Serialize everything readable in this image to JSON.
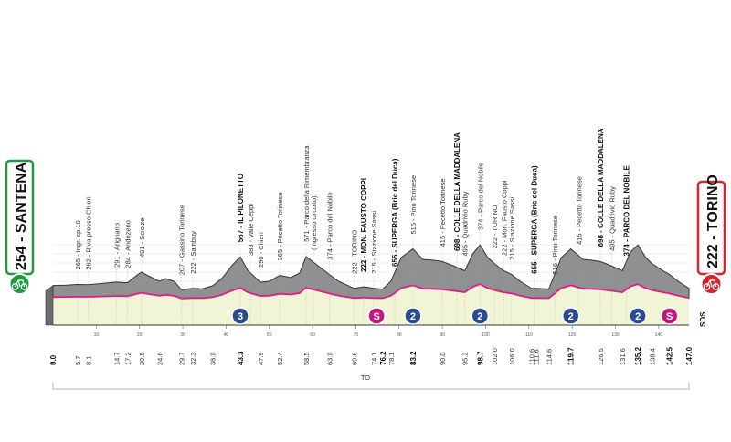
{
  "colors": {
    "profile_fill": "#8f9092",
    "profile_dark": "#6c6d70",
    "ground_fill": "#f2f4d6",
    "pink_line": "#e01d87",
    "start_green": "#1c9a3c",
    "finish_red": "#d9242b",
    "circuit_blue": "#2a4b8d",
    "sprint_magenta": "#c2187d"
  },
  "chart_data": {
    "type": "area",
    "xlabel": "",
    "ylabel": "",
    "xlim": [
      0,
      147
    ],
    "ylim": [
      0,
      900
    ],
    "start": {
      "label": "254 - SANTENA",
      "km": 0.0
    },
    "finish": {
      "label": "222 - TORINO",
      "km": 147.0
    },
    "distance_labels": [
      "0.0",
      "5.7",
      "8.1",
      "14.7",
      "17.2",
      "20.5",
      "24.6",
      "29.7",
      "32.3",
      "36.9",
      "43.3",
      "47.9",
      "52.4",
      "58.5",
      "63.9",
      "69.6",
      "74.1",
      "76.2",
      "78.1",
      "83.2",
      "90.0",
      "95.2",
      "98.7",
      "102.0",
      "106.0",
      "110.6",
      "111.6",
      "114.6",
      "119.7",
      "126.5",
      "131.6",
      "135.2",
      "138.4",
      "142.5",
      "147.0"
    ],
    "bold_distance_labels": [
      "0.0",
      "43.3",
      "76.2",
      "83.2",
      "98.7",
      "119.7",
      "135.2",
      "142.5",
      "147.0"
    ],
    "ticks_10": [
      10,
      20,
      30,
      40,
      50,
      60,
      70,
      80,
      90,
      100,
      110,
      120,
      130,
      140
    ],
    "elevation_gridlines": [
      200,
      300,
      400,
      500,
      600,
      700
    ],
    "profile": [
      {
        "km": 0.0,
        "alt": 254
      },
      {
        "km": 3.0,
        "alt": 258
      },
      {
        "km": 5.7,
        "alt": 265
      },
      {
        "km": 8.1,
        "alt": 262
      },
      {
        "km": 11.0,
        "alt": 275
      },
      {
        "km": 14.7,
        "alt": 291
      },
      {
        "km": 17.2,
        "alt": 284
      },
      {
        "km": 19.5,
        "alt": 370
      },
      {
        "km": 20.5,
        "alt": 401
      },
      {
        "km": 22.0,
        "alt": 360
      },
      {
        "km": 24.6,
        "alt": 300
      },
      {
        "km": 26.0,
        "alt": 330
      },
      {
        "km": 28.0,
        "alt": 300
      },
      {
        "km": 29.7,
        "alt": 207
      },
      {
        "km": 32.3,
        "alt": 222
      },
      {
        "km": 34.5,
        "alt": 218
      },
      {
        "km": 36.9,
        "alt": 250
      },
      {
        "km": 39.0,
        "alt": 330
      },
      {
        "km": 41.5,
        "alt": 480
      },
      {
        "km": 43.3,
        "alt": 567
      },
      {
        "km": 45.0,
        "alt": 420
      },
      {
        "km": 47.9,
        "alt": 290
      },
      {
        "km": 50.0,
        "alt": 300
      },
      {
        "km": 52.4,
        "alt": 365
      },
      {
        "km": 55.0,
        "alt": 340
      },
      {
        "km": 57.0,
        "alt": 390
      },
      {
        "km": 58.5,
        "alt": 571
      },
      {
        "km": 61.0,
        "alt": 480
      },
      {
        "km": 63.9,
        "alt": 374
      },
      {
        "km": 66.0,
        "alt": 300
      },
      {
        "km": 69.6,
        "alt": 222
      },
      {
        "km": 72.0,
        "alt": 240
      },
      {
        "km": 74.1,
        "alt": 222
      },
      {
        "km": 76.2,
        "alt": 215
      },
      {
        "km": 78.1,
        "alt": 300
      },
      {
        "km": 80.5,
        "alt": 560
      },
      {
        "km": 83.2,
        "alt": 655
      },
      {
        "km": 85.5,
        "alt": 540
      },
      {
        "km": 88.0,
        "alt": 530
      },
      {
        "km": 90.0,
        "alt": 516
      },
      {
        "km": 92.5,
        "alt": 470
      },
      {
        "km": 95.2,
        "alt": 415
      },
      {
        "km": 97.0,
        "alt": 600
      },
      {
        "km": 98.7,
        "alt": 698
      },
      {
        "km": 100.5,
        "alt": 560
      },
      {
        "km": 102.0,
        "alt": 495
      },
      {
        "km": 104.0,
        "alt": 420
      },
      {
        "km": 106.0,
        "alt": 374
      },
      {
        "km": 108.0,
        "alt": 300
      },
      {
        "km": 110.6,
        "alt": 222
      },
      {
        "km": 111.6,
        "alt": 222
      },
      {
        "km": 114.6,
        "alt": 215
      },
      {
        "km": 117.5,
        "alt": 560
      },
      {
        "km": 119.7,
        "alt": 655
      },
      {
        "km": 122.5,
        "alt": 540
      },
      {
        "km": 124.5,
        "alt": 530
      },
      {
        "km": 126.5,
        "alt": 516
      },
      {
        "km": 129.0,
        "alt": 470
      },
      {
        "km": 131.6,
        "alt": 415
      },
      {
        "km": 133.5,
        "alt": 620
      },
      {
        "km": 135.2,
        "alt": 698
      },
      {
        "km": 137.0,
        "alt": 560
      },
      {
        "km": 138.4,
        "alt": 495
      },
      {
        "km": 140.5,
        "alt": 430
      },
      {
        "km": 142.5,
        "alt": 374
      },
      {
        "km": 144.5,
        "alt": 300
      },
      {
        "km": 147.0,
        "alt": 222
      }
    ],
    "annotations": [
      {
        "km": 5.7,
        "text": "265 - Ingr. sp.10",
        "bold": false
      },
      {
        "km": 8.1,
        "text": "262 - Riva presso Chieri",
        "bold": false
      },
      {
        "km": 14.7,
        "text": "291 - Arignano",
        "bold": false
      },
      {
        "km": 17.2,
        "text": "284 - Andezeno",
        "bold": false
      },
      {
        "km": 20.5,
        "text": "401 - Sciolze",
        "bold": false
      },
      {
        "km": 29.7,
        "text": "207 - Gassino Torinese",
        "bold": false
      },
      {
        "km": 32.3,
        "text": "222 - Sambuy",
        "bold": false
      },
      {
        "km": 43.3,
        "text": "567 - IL PILONETTO",
        "bold": true
      },
      {
        "km": 45.6,
        "text": "383 - Valle Ceppi",
        "bold": false
      },
      {
        "km": 47.9,
        "text": "290 - Chieri",
        "bold": false
      },
      {
        "km": 52.4,
        "text": "365 - Pecetto Torinese",
        "bold": false
      },
      {
        "km": 58.5,
        "text": "571 - Parco della Rimembranza",
        "bold": false
      },
      {
        "km": 60.2,
        "text": "(Ingresso circuito)",
        "bold": false
      },
      {
        "km": 63.9,
        "text": "374 - Parco del Nobile",
        "bold": false
      },
      {
        "km": 69.6,
        "text": "222 - TORINO",
        "bold": false
      },
      {
        "km": 71.8,
        "text": "222 - MON. FAUSTO COPPI",
        "bold": true
      },
      {
        "km": 74.1,
        "text": "215 - Stazione Sassi",
        "bold": false
      },
      {
        "km": 79.0,
        "text": "655 - SUPERGA (Bric del Duca)",
        "bold": true
      },
      {
        "km": 83.2,
        "text": "516 - Pino Torinese",
        "bold": false
      },
      {
        "km": 90.0,
        "text": "415 - Pecetto Torinese",
        "bold": false
      },
      {
        "km": 93.4,
        "text": "698 - COLLE DELLA MADDALENA",
        "bold": true
      },
      {
        "km": 95.2,
        "text": "495 - Quadrivio Ruby",
        "bold": false
      },
      {
        "km": 98.7,
        "text": "374 - Parco del Nobile",
        "bold": false
      },
      {
        "km": 102.0,
        "text": "222 - TORINO",
        "bold": false
      },
      {
        "km": 104.2,
        "text": "222 - Mon. Fausto Coppi",
        "bold": false
      },
      {
        "km": 106.0,
        "text": "215 - Stazione Sassi",
        "bold": false
      },
      {
        "km": 111.2,
        "text": "655 - SUPERGA (Bric del Duca)",
        "bold": true
      },
      {
        "km": 116.0,
        "text": "516 - Pino Torinese",
        "bold": false
      },
      {
        "km": 121.5,
        "text": "415 - Pecetto Torinese",
        "bold": false
      },
      {
        "km": 126.5,
        "text": "698 - COLLE DELLA MADDALENA",
        "bold": true
      },
      {
        "km": 129.2,
        "text": "495 - Quadrivio Ruby",
        "bold": false
      },
      {
        "km": 132.5,
        "text": "374 - PARCO DEL NOBILE",
        "bold": true
      }
    ],
    "circuit_markers": [
      {
        "km": 43.3,
        "text": "3",
        "kind": "gpm"
      },
      {
        "km": 74.8,
        "text": "S",
        "kind": "sprint"
      },
      {
        "km": 83.2,
        "text": "2",
        "kind": "gpm"
      },
      {
        "km": 98.7,
        "text": "2",
        "kind": "gpm"
      },
      {
        "km": 119.7,
        "text": "2",
        "kind": "gpm"
      },
      {
        "km": 135.2,
        "text": "2",
        "kind": "gpm"
      },
      {
        "km": 142.5,
        "text": "S",
        "kind": "sprint"
      }
    ],
    "circuit_label": "TO",
    "sds_label": "SDS"
  }
}
